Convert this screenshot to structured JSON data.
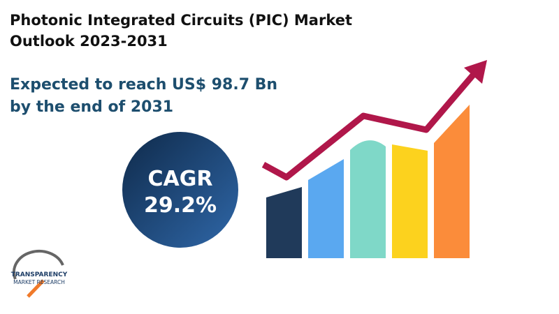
{
  "header": {
    "title_lines": [
      "Photonic Integrated Circuits (PIC) Market",
      "Outlook 2023-2031"
    ],
    "subtitle_lines": [
      "Expected to reach US$ 98.7 Bn",
      "by the end of 2031"
    ]
  },
  "badge": {
    "label": "CAGR",
    "value": "29.2%"
  },
  "logo": {
    "name_lines": [
      "TRANSPARENCY",
      "MARKET RESEARCH"
    ]
  }
}
